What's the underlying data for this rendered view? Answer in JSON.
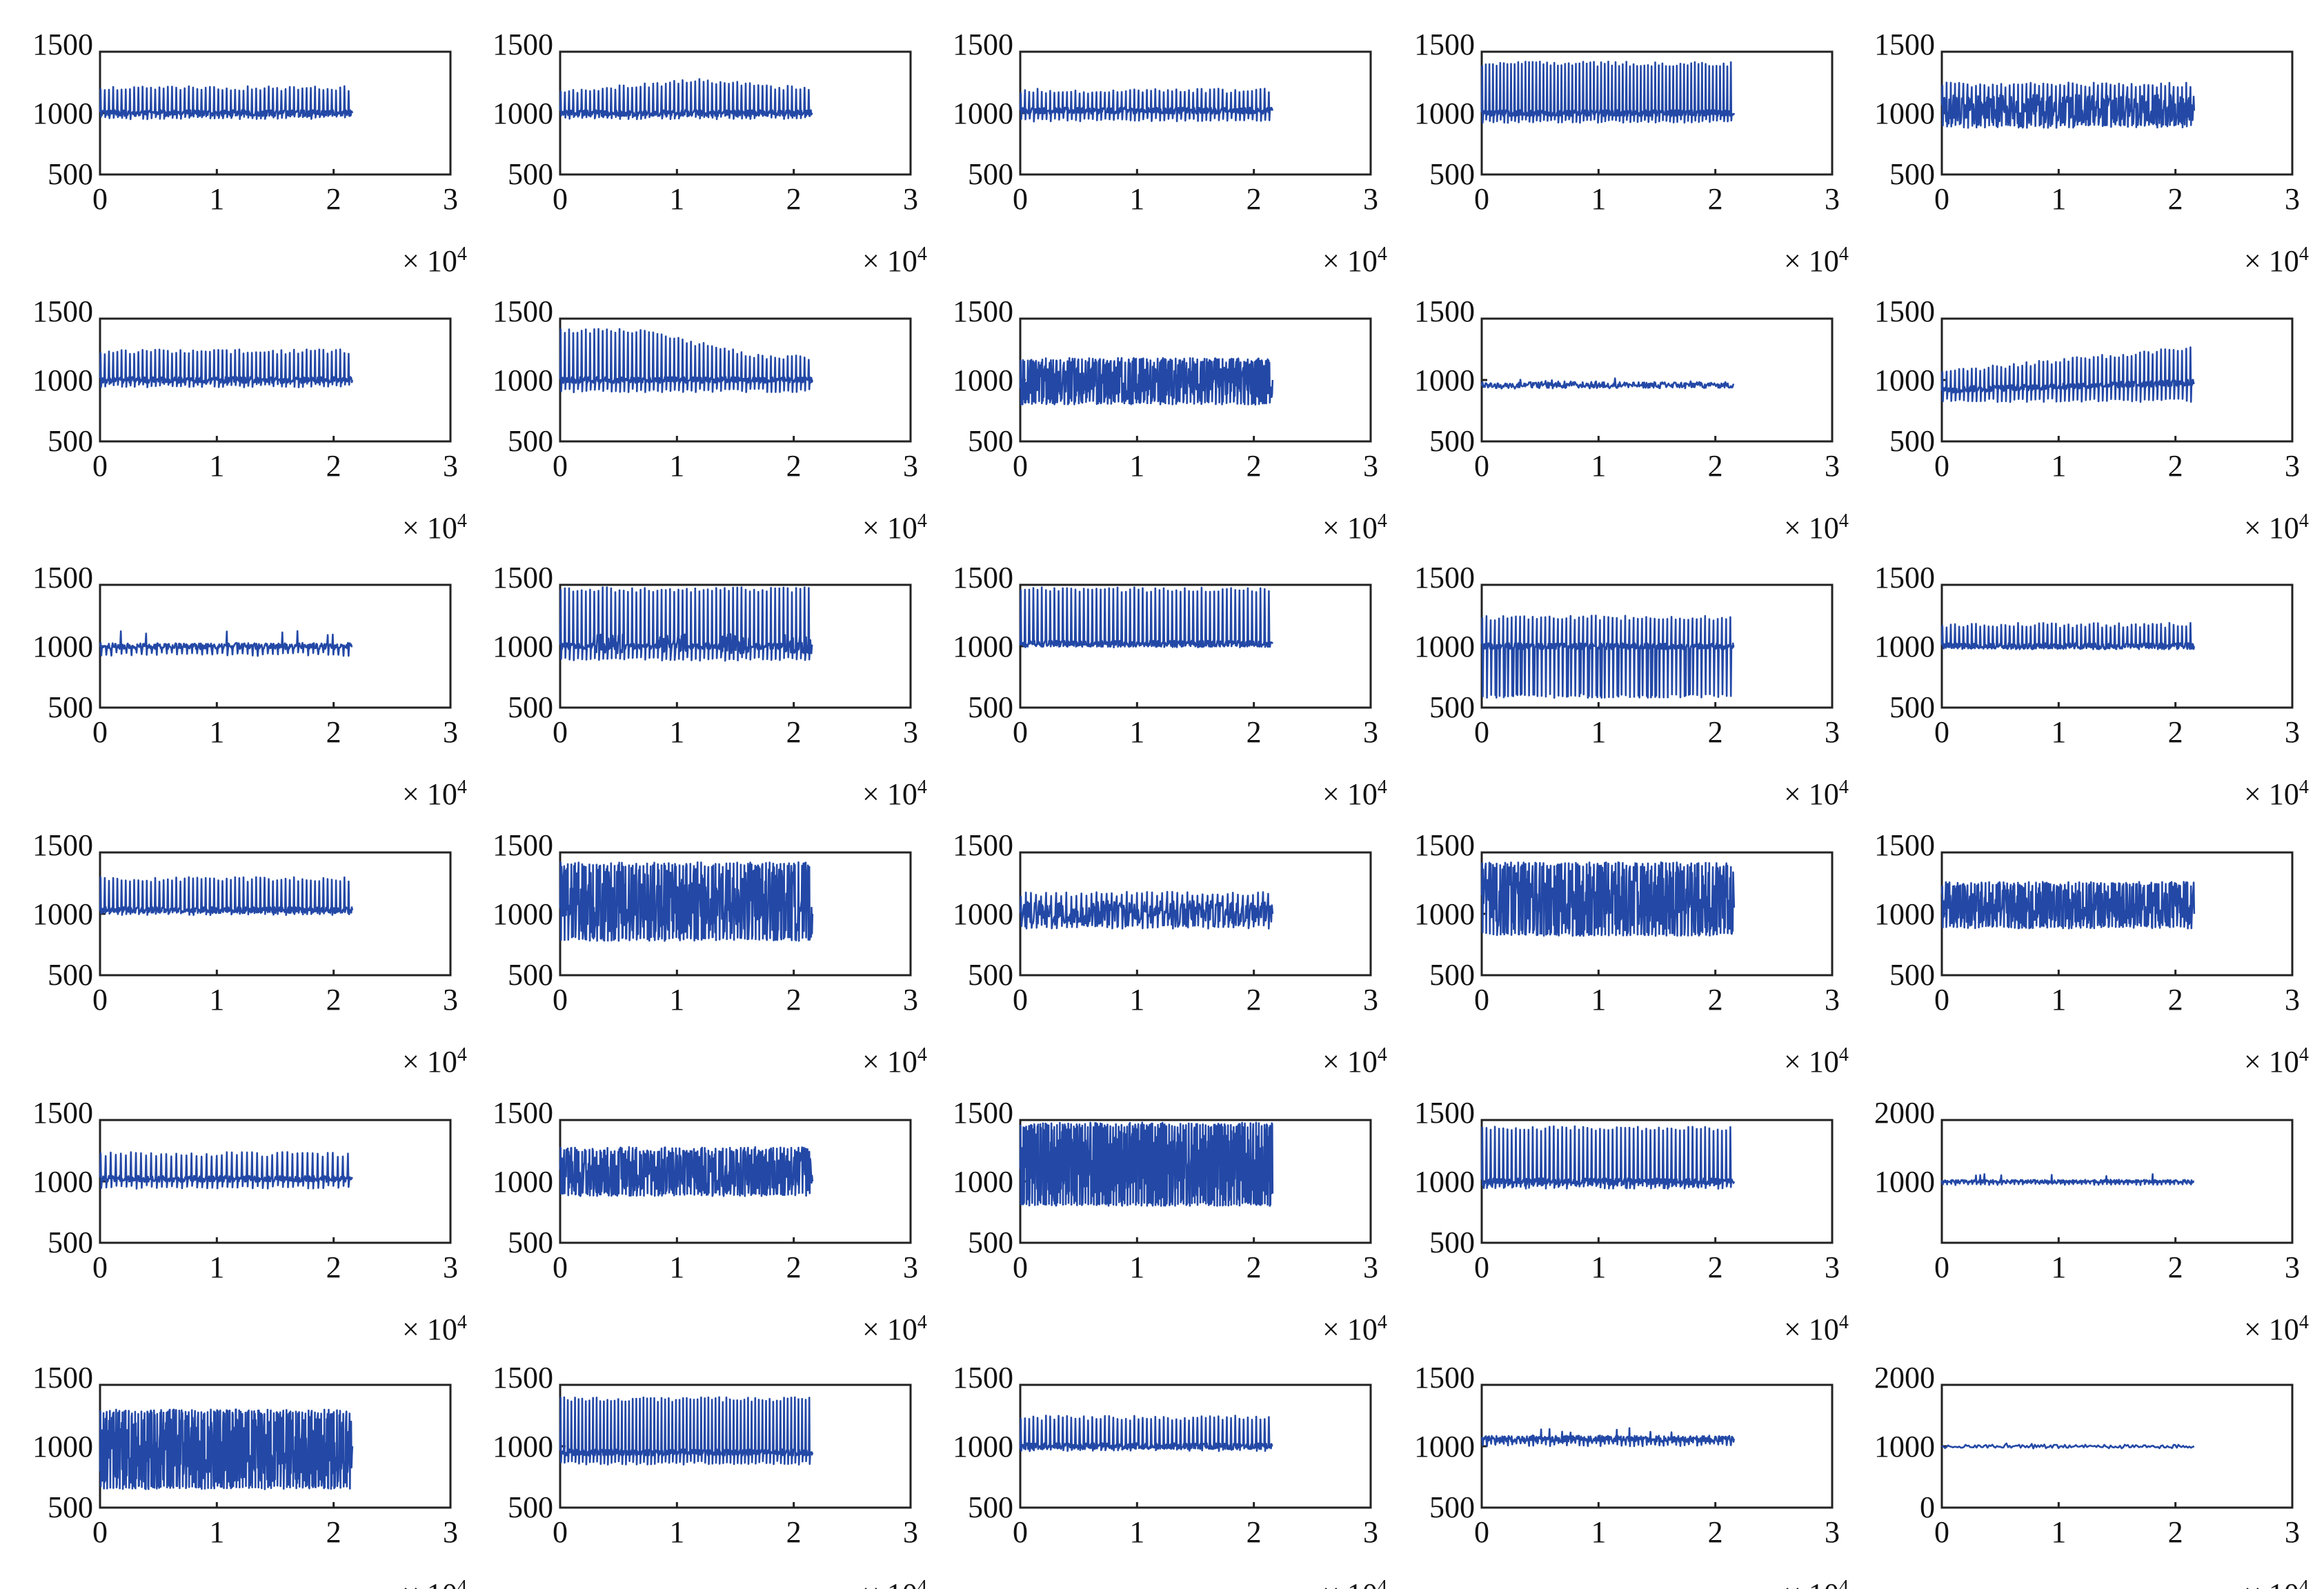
{
  "chart_data": {
    "type": "line",
    "layout": {
      "rows": 6,
      "cols": 5
    },
    "series_color": "#2348a6",
    "x_axis": {
      "ticks": [
        "0",
        "1",
        "2",
        "3"
      ],
      "range": [
        0,
        30000
      ],
      "exponent_label": "× 10",
      "exponent": "4"
    },
    "data_extent_x": [
      0,
      21600
    ],
    "panels": [
      {
        "id": 1,
        "yticks": [
          "1500",
          "1000",
          "500"
        ],
        "ylim": [
          500,
          1500
        ],
        "base": 1000,
        "upper": 1220,
        "lower": 950,
        "beats": 60,
        "feature": "regular"
      },
      {
        "id": 2,
        "yticks": [
          "1500",
          "1000",
          "500"
        ],
        "ylim": [
          500,
          1500
        ],
        "base": 1000,
        "upper": 1280,
        "lower": 950,
        "beats": 60,
        "feature": "bulge"
      },
      {
        "id": 3,
        "yticks": [
          "1500",
          "1000",
          "500"
        ],
        "ylim": [
          500,
          1500
        ],
        "base": 1020,
        "upper": 1200,
        "lower": 930,
        "beats": 60,
        "feature": "regular"
      },
      {
        "id": 4,
        "yticks": [
          "1500",
          "1000",
          "500"
        ],
        "ylim": [
          500,
          1500
        ],
        "base": 1000,
        "upper": 1420,
        "lower": 920,
        "beats": 70,
        "feature": "regular"
      },
      {
        "id": 5,
        "yticks": [
          "1500",
          "1000",
          "500"
        ],
        "ylim": [
          500,
          1500
        ],
        "base": 1020,
        "upper": 1250,
        "lower": 880,
        "beats": 60,
        "feature": "noisy"
      },
      {
        "id": 6,
        "yticks": [
          "1500",
          "1000",
          "500"
        ],
        "ylim": [
          500,
          1500
        ],
        "base": 1000,
        "upper": 1250,
        "lower": 940,
        "beats": 60,
        "feature": "regular"
      },
      {
        "id": 7,
        "yticks": [
          "1500",
          "1000",
          "500"
        ],
        "ylim": [
          500,
          1500
        ],
        "base": 1000,
        "upper": 1420,
        "lower": 900,
        "beats": 60,
        "feature": "decay"
      },
      {
        "id": 8,
        "yticks": [
          "1500",
          "1000",
          "500"
        ],
        "ylim": [
          500,
          1500
        ],
        "base": 1000,
        "upper": 1180,
        "lower": 800,
        "beats": 70,
        "feature": "dense"
      },
      {
        "id": 9,
        "yticks": [
          "1500",
          "1000",
          "500"
        ],
        "ylim": [
          500,
          1500
        ],
        "base": 960,
        "upper": 1020,
        "lower": 930,
        "beats": 40,
        "feature": "flat"
      },
      {
        "id": 10,
        "yticks": [
          "1500",
          "1000",
          "500"
        ],
        "ylim": [
          500,
          1500
        ],
        "base": 980,
        "upper": 1280,
        "lower": 820,
        "beats": 60,
        "feature": "rising"
      },
      {
        "id": 11,
        "yticks": [
          "1500",
          "1000",
          "500"
        ],
        "ylim": [
          500,
          1500
        ],
        "base": 1000,
        "upper": 1130,
        "lower": 920,
        "beats": 50,
        "feature": "flat"
      },
      {
        "id": 12,
        "yticks": [
          "1500",
          "1000",
          "500"
        ],
        "ylim": [
          500,
          1500
        ],
        "base": 1000,
        "upper": 1480,
        "lower": 880,
        "beats": 60,
        "feature": "blocks"
      },
      {
        "id": 13,
        "yticks": [
          "1500",
          "1000",
          "500"
        ],
        "ylim": [
          500,
          1500
        ],
        "base": 1020,
        "upper": 1480,
        "lower": 990,
        "beats": 60,
        "feature": "regular"
      },
      {
        "id": 14,
        "yticks": [
          "1500",
          "1000",
          "500"
        ],
        "ylim": [
          500,
          1500
        ],
        "base": 1000,
        "upper": 1250,
        "lower": 580,
        "beats": 60,
        "feature": "downspikes"
      },
      {
        "id": 15,
        "yticks": [
          "1500",
          "1000",
          "500"
        ],
        "ylim": [
          500,
          1500
        ],
        "base": 1000,
        "upper": 1190,
        "lower": 980,
        "beats": 60,
        "feature": "regular"
      },
      {
        "id": 16,
        "yticks": [
          "1500",
          "1000",
          "500"
        ],
        "ylim": [
          500,
          1500
        ],
        "base": 1030,
        "upper": 1300,
        "lower": 990,
        "beats": 60,
        "feature": "regular"
      },
      {
        "id": 17,
        "yticks": [
          "1500",
          "1000",
          "500"
        ],
        "ylim": [
          500,
          1500
        ],
        "base": 1000,
        "upper": 1420,
        "lower": 780,
        "beats": 70,
        "feature": "wild"
      },
      {
        "id": 18,
        "yticks": [
          "1500",
          "1000",
          "500"
        ],
        "ylim": [
          500,
          1500
        ],
        "base": 1000,
        "upper": 1180,
        "lower": 880,
        "beats": 50,
        "feature": "noisy"
      },
      {
        "id": 19,
        "yticks": [
          "1500",
          "1000",
          "500"
        ],
        "ylim": [
          500,
          1500
        ],
        "base": 1050,
        "upper": 1420,
        "lower": 820,
        "beats": 70,
        "feature": "wild"
      },
      {
        "id": 20,
        "yticks": [
          "1500",
          "1000",
          "500"
        ],
        "ylim": [
          500,
          1500
        ],
        "base": 1000,
        "upper": 1260,
        "lower": 880,
        "beats": 70,
        "feature": "dense"
      },
      {
        "id": 21,
        "yticks": [
          "1500",
          "1000",
          "500"
        ],
        "ylim": [
          500,
          1500
        ],
        "base": 1020,
        "upper": 1240,
        "lower": 940,
        "beats": 50,
        "feature": "regular"
      },
      {
        "id": 22,
        "yticks": [
          "1500",
          "1000",
          "500"
        ],
        "ylim": [
          500,
          1500
        ],
        "base": 1000,
        "upper": 1280,
        "lower": 880,
        "beats": 70,
        "feature": "dense"
      },
      {
        "id": 23,
        "yticks": [
          "1500",
          "1000",
          "500"
        ],
        "ylim": [
          500,
          1500
        ],
        "base": 900,
        "upper": 1480,
        "lower": 800,
        "beats": 90,
        "feature": "solid"
      },
      {
        "id": 24,
        "yticks": [
          "1500",
          "1000",
          "500"
        ],
        "ylim": [
          500,
          1500
        ],
        "base": 1000,
        "upper": 1450,
        "lower": 940,
        "beats": 60,
        "feature": "downspikes"
      },
      {
        "id": 25,
        "yticks": [
          "2000",
          "1000",
          ""
        ],
        "ylim": [
          0,
          2000
        ],
        "base": 1000,
        "upper": 1120,
        "lower": 940,
        "beats": 60,
        "feature": "flat"
      },
      {
        "id": 26,
        "yticks": [
          "1500",
          "1000",
          "500"
        ],
        "ylim": [
          500,
          1500
        ],
        "base": 1000,
        "upper": 1300,
        "lower": 650,
        "beats": 80,
        "feature": "wide"
      },
      {
        "id": 27,
        "yticks": [
          "1500",
          "1000",
          "500"
        ],
        "ylim": [
          500,
          1500
        ],
        "base": 950,
        "upper": 1400,
        "lower": 850,
        "beats": 70,
        "feature": "regular"
      },
      {
        "id": 28,
        "yticks": [
          "1500",
          "1000",
          "500"
        ],
        "ylim": [
          500,
          1500
        ],
        "base": 1000,
        "upper": 1250,
        "lower": 960,
        "beats": 60,
        "feature": "regular"
      },
      {
        "id": 29,
        "yticks": [
          "1500",
          "1000",
          "500"
        ],
        "ylim": [
          500,
          1500
        ],
        "base": 1060,
        "upper": 1150,
        "lower": 1000,
        "beats": 60,
        "feature": "flat"
      },
      {
        "id": 30,
        "yticks": [
          "2000",
          "1000",
          "0"
        ],
        "ylim": [
          0,
          2000
        ],
        "base": 1000,
        "upper": 1060,
        "lower": 960,
        "beats": 20,
        "feature": "sparse"
      }
    ]
  }
}
